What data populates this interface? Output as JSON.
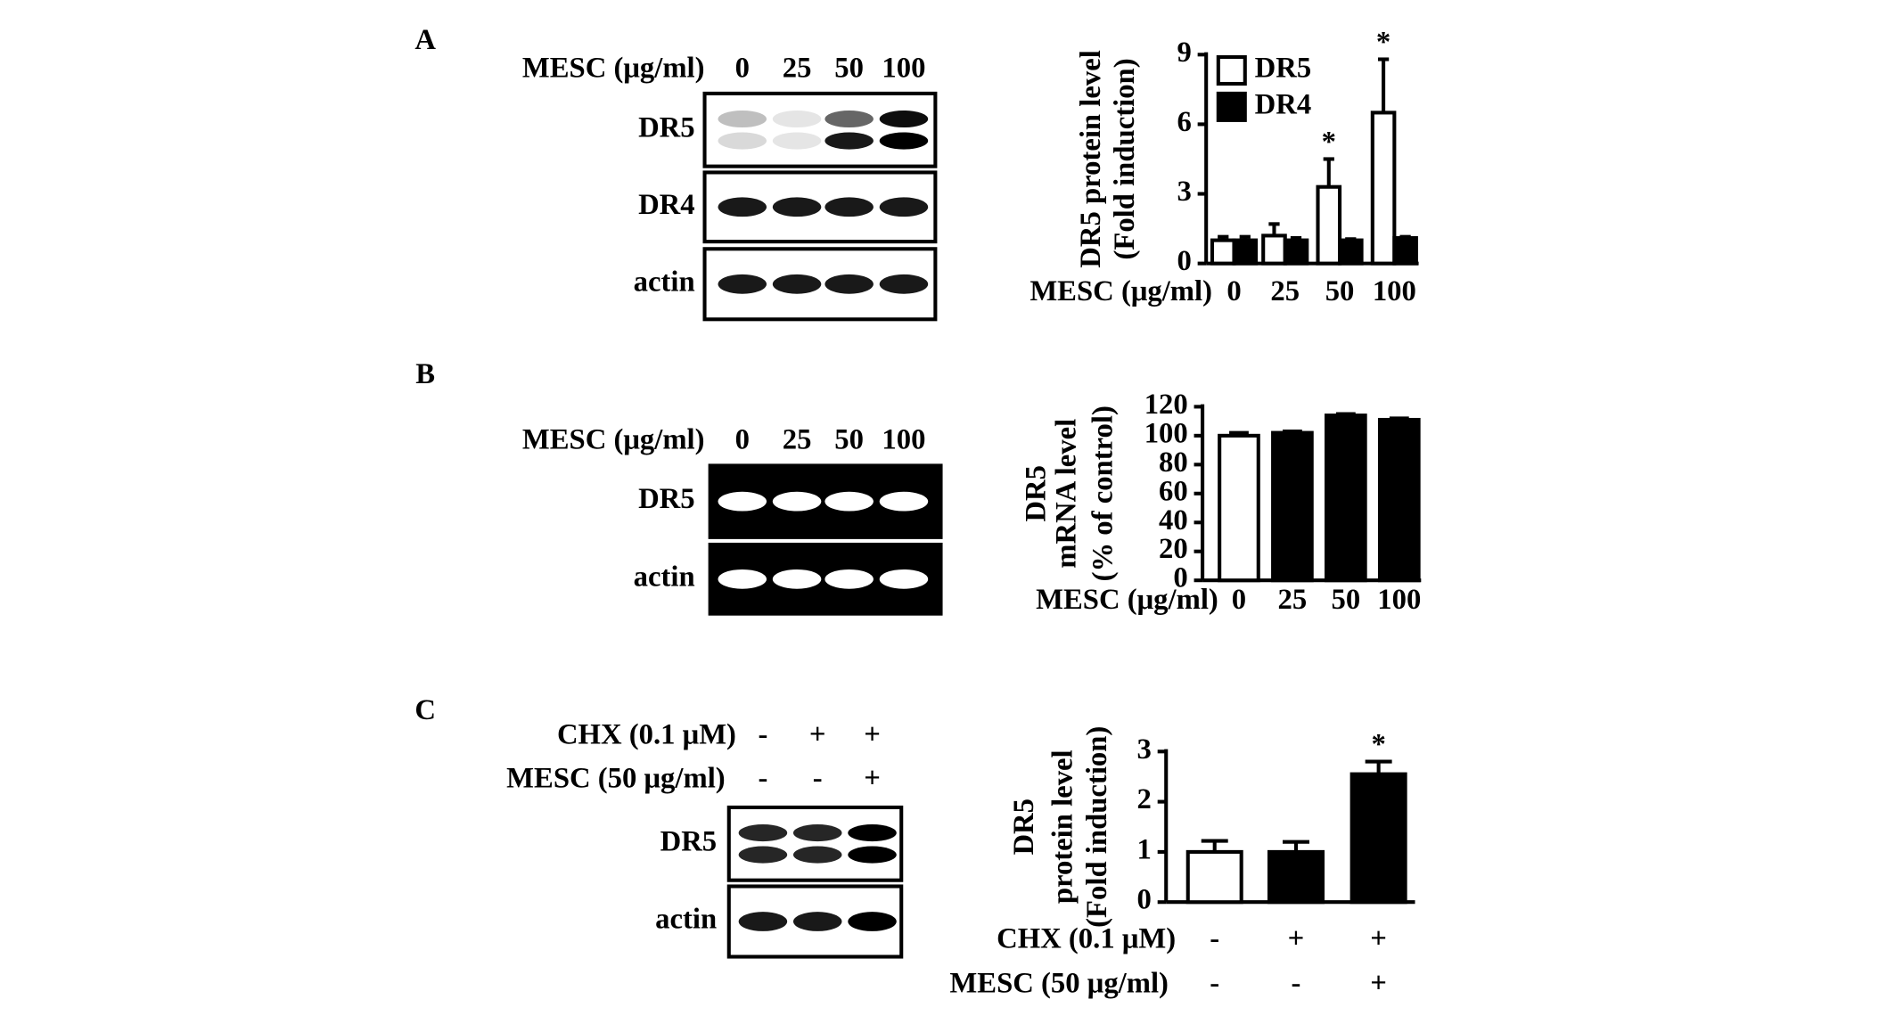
{
  "panel_labels": [
    "A",
    "B",
    "C"
  ],
  "blots": [
    {
      "header_rows": [
        {
          "label": "MESC (μg/ml)",
          "lanes": [
            "0",
            "25",
            "50",
            "100"
          ]
        }
      ],
      "rows": [
        "DR5",
        "DR4",
        "actin"
      ]
    },
    {
      "header_rows": [
        {
          "label": "MESC (μg/ml)",
          "lanes": [
            "0",
            "25",
            "50",
            "100"
          ]
        }
      ],
      "rows": [
        "DR5",
        "actin"
      ]
    },
    {
      "header_rows": [
        {
          "label": "CHX (0.1 μM)",
          "lanes": [
            "-",
            "+",
            "+"
          ]
        },
        {
          "label": "MESC (50 μg/ml)",
          "lanes": [
            "-",
            "-",
            "+"
          ]
        }
      ],
      "rows": [
        "DR5",
        "actin"
      ]
    }
  ],
  "chart_data": [
    {
      "type": "bar",
      "y_label": [
        "DR5 protein level",
        "(Fold induction)"
      ],
      "x_label": "MESC (μg/ml)",
      "categories": [
        "0",
        "25",
        "50",
        "100"
      ],
      "series": [
        {
          "name": "DR5",
          "color": "#ffffff",
          "values": [
            1.0,
            1.2,
            3.3,
            6.5
          ],
          "errors": [
            0.15,
            0.5,
            1.2,
            2.3
          ],
          "annotations": [
            null,
            null,
            "*",
            "*"
          ]
        },
        {
          "name": "DR4",
          "color": "#000000",
          "values": [
            1.0,
            1.0,
            1.0,
            1.1
          ],
          "errors": [
            0.15,
            0.1,
            0.05,
            0.05
          ]
        }
      ],
      "ylim": [
        0,
        9
      ],
      "yticks": [
        0,
        3,
        6,
        9
      ],
      "legend": "top-left"
    },
    {
      "type": "bar",
      "y_label": [
        "DR5",
        "mRNA level",
        "(% of control)"
      ],
      "x_label": "MESC (μg/ml)",
      "categories": [
        "0",
        "25",
        "50",
        "100"
      ],
      "values": [
        100,
        102,
        114,
        111
      ],
      "errors": [
        2,
        1,
        1,
        1
      ],
      "colors": [
        "#ffffff",
        "#000000",
        "#000000",
        "#000000"
      ],
      "ylim": [
        0,
        120
      ],
      "yticks": [
        0,
        20,
        40,
        60,
        80,
        100,
        120
      ]
    },
    {
      "type": "bar",
      "y_label": [
        "DR5",
        "protein level",
        "(Fold induction)"
      ],
      "category_rows": [
        {
          "label": "CHX (0.1 μM)",
          "values": [
            "-",
            "+",
            "+"
          ]
        },
        {
          "label": "MESC (50 μg/ml)",
          "values": [
            "-",
            "-",
            "+"
          ]
        }
      ],
      "values": [
        1.0,
        1.0,
        2.55
      ],
      "errors": [
        0.22,
        0.2,
        0.25
      ],
      "colors": [
        "#ffffff",
        "#000000",
        "#000000"
      ],
      "annotations": [
        null,
        null,
        "*"
      ],
      "ylim": [
        0,
        3
      ],
      "yticks": [
        0,
        1,
        2,
        3
      ]
    }
  ]
}
